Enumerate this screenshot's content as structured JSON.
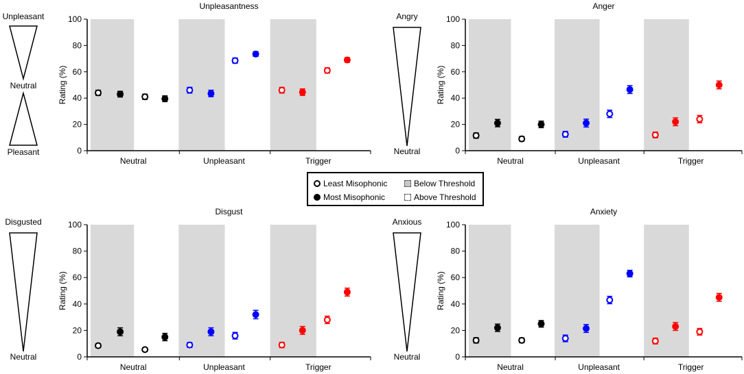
{
  "chart_data": [
    {
      "type": "scatter",
      "title": "Unpleasantness",
      "ylabel": "Rating (%)",
      "ylim": [
        0,
        100
      ],
      "yticks": [
        "0",
        "20",
        "40",
        "60",
        "80",
        "100"
      ],
      "categories": [
        "Neutral",
        "Unpleasant",
        "Trigger"
      ],
      "side_labels": {
        "top": "Unpleasant",
        "middle": "Neutral",
        "bottom": "Pleasant"
      },
      "series": [
        {
          "name": "Neutral Below Threshold Least Misophonic",
          "value": 44,
          "err": 2
        },
        {
          "name": "Neutral Below Threshold Most Misophonic",
          "value": 43,
          "err": 2.2
        },
        {
          "name": "Neutral Above Threshold Least Misophonic",
          "value": 41,
          "err": 2
        },
        {
          "name": "Neutral Above Threshold Most Misophonic",
          "value": 39.5,
          "err": 2.2
        },
        {
          "name": "Unpleasant Below Threshold Least Misophonic",
          "value": 46,
          "err": 2.2
        },
        {
          "name": "Unpleasant Below Threshold Most Misophonic",
          "value": 43.5,
          "err": 2.5
        },
        {
          "name": "Unpleasant Above Threshold Least Misophonic",
          "value": 68.5,
          "err": 2
        },
        {
          "name": "Unpleasant Above Threshold Most Misophonic",
          "value": 73.5,
          "err": 1.8
        },
        {
          "name": "Trigger Below Threshold Least Misophonic",
          "value": 46,
          "err": 2.2
        },
        {
          "name": "Trigger Below Threshold Most Misophonic",
          "value": 44.5,
          "err": 2.5
        },
        {
          "name": "Trigger Above Threshold Least Misophonic",
          "value": 61,
          "err": 2
        },
        {
          "name": "Trigger Above Threshold Most Misophonic",
          "value": 69,
          "err": 1.8
        }
      ]
    },
    {
      "type": "scatter",
      "title": "Anger",
      "ylabel": "Rating (%)",
      "ylim": [
        0,
        100
      ],
      "yticks": [
        "0",
        "20",
        "40",
        "60",
        "80",
        "100"
      ],
      "categories": [
        "Neutral",
        "Unpleasant",
        "Trigger"
      ],
      "side_labels": {
        "top": "Angry",
        "bottom": "Neutral"
      },
      "series": [
        {
          "name": "Neutral Below Threshold Least Misophonic",
          "value": 11.5,
          "err": 2
        },
        {
          "name": "Neutral Below Threshold Most Misophonic",
          "value": 21,
          "err": 2.8
        },
        {
          "name": "Neutral Above Threshold Least Misophonic",
          "value": 9,
          "err": 1.8
        },
        {
          "name": "Neutral Above Threshold Most Misophonic",
          "value": 20,
          "err": 2.5
        },
        {
          "name": "Unpleasant Below Threshold Least Misophonic",
          "value": 12.5,
          "err": 2.2
        },
        {
          "name": "Unpleasant Below Threshold Most Misophonic",
          "value": 21,
          "err": 3
        },
        {
          "name": "Unpleasant Above Threshold Least Misophonic",
          "value": 28,
          "err": 2.8
        },
        {
          "name": "Unpleasant Above Threshold Most Misophonic",
          "value": 46.5,
          "err": 3
        },
        {
          "name": "Trigger Below Threshold Least Misophonic",
          "value": 12,
          "err": 2.2
        },
        {
          "name": "Trigger Below Threshold Most Misophonic",
          "value": 22,
          "err": 3
        },
        {
          "name": "Trigger Above Threshold Least Misophonic",
          "value": 24,
          "err": 2.8
        },
        {
          "name": "Trigger Above Threshold Most Misophonic",
          "value": 50,
          "err": 3
        }
      ]
    },
    {
      "type": "scatter",
      "title": "Disgust",
      "ylabel": "Rating (%)",
      "ylim": [
        0,
        100
      ],
      "yticks": [
        "0",
        "20",
        "40",
        "60",
        "80",
        "100"
      ],
      "categories": [
        "Neutral",
        "Unpleasant",
        "Trigger"
      ],
      "side_labels": {
        "top": "Disgusted",
        "bottom": "Neutral"
      },
      "series": [
        {
          "name": "Neutral Below Threshold Least Misophonic",
          "value": 8.5,
          "err": 1.5
        },
        {
          "name": "Neutral Below Threshold Most Misophonic",
          "value": 19,
          "err": 3
        },
        {
          "name": "Neutral Above Threshold Least Misophonic",
          "value": 5.5,
          "err": 1.3
        },
        {
          "name": "Neutral Above Threshold Most Misophonic",
          "value": 15,
          "err": 2.8
        },
        {
          "name": "Unpleasant Below Threshold Least Misophonic",
          "value": 9,
          "err": 1.8
        },
        {
          "name": "Unpleasant Below Threshold Most Misophonic",
          "value": 19,
          "err": 3
        },
        {
          "name": "Unpleasant Above Threshold Least Misophonic",
          "value": 16,
          "err": 2.5
        },
        {
          "name": "Unpleasant Above Threshold Most Misophonic",
          "value": 32,
          "err": 3.2
        },
        {
          "name": "Trigger Below Threshold Least Misophonic",
          "value": 9,
          "err": 2
        },
        {
          "name": "Trigger Below Threshold Most Misophonic",
          "value": 20,
          "err": 3
        },
        {
          "name": "Trigger Above Threshold Least Misophonic",
          "value": 28,
          "err": 2.8
        },
        {
          "name": "Trigger Above Threshold Most Misophonic",
          "value": 49,
          "err": 3
        }
      ]
    },
    {
      "type": "scatter",
      "title": "Anxiety",
      "ylabel": "Rating (%)",
      "ylim": [
        0,
        100
      ],
      "yticks": [
        "0",
        "20",
        "40",
        "60",
        "80",
        "100"
      ],
      "categories": [
        "Neutral",
        "Unpleasant",
        "Trigger"
      ],
      "side_labels": {
        "top": "Anxious",
        "bottom": "Neutral"
      },
      "series": [
        {
          "name": "Neutral Below Threshold Least Misophonic",
          "value": 12.5,
          "err": 2
        },
        {
          "name": "Neutral Below Threshold Most Misophonic",
          "value": 22,
          "err": 2.8
        },
        {
          "name": "Neutral Above Threshold Least Misophonic",
          "value": 12.5,
          "err": 1.8
        },
        {
          "name": "Neutral Above Threshold Most Misophonic",
          "value": 25,
          "err": 2.5
        },
        {
          "name": "Unpleasant Below Threshold Least Misophonic",
          "value": 14,
          "err": 2.5
        },
        {
          "name": "Unpleasant Below Threshold Most Misophonic",
          "value": 21.5,
          "err": 3
        },
        {
          "name": "Unpleasant Above Threshold Least Misophonic",
          "value": 43,
          "err": 2.8
        },
        {
          "name": "Unpleasant Above Threshold Most Misophonic",
          "value": 63,
          "err": 2.5
        },
        {
          "name": "Trigger Below Threshold Least Misophonic",
          "value": 12,
          "err": 2.2
        },
        {
          "name": "Trigger Below Threshold Most Misophonic",
          "value": 23,
          "err": 3
        },
        {
          "name": "Trigger Above Threshold Least Misophonic",
          "value": 19,
          "err": 2.5
        },
        {
          "name": "Trigger Above Threshold Most Misophonic",
          "value": 45,
          "err": 3
        }
      ]
    }
  ],
  "colors": {
    "Neutral": "#000000",
    "Unpleasant": "#0000ff",
    "Trigger": "#ff0000",
    "shade": "#d9d9d9"
  },
  "legend": {
    "least": "Least Misophonic",
    "most": "Most Misophonic",
    "below": "Below Threshold",
    "above": "Above Threshold"
  }
}
